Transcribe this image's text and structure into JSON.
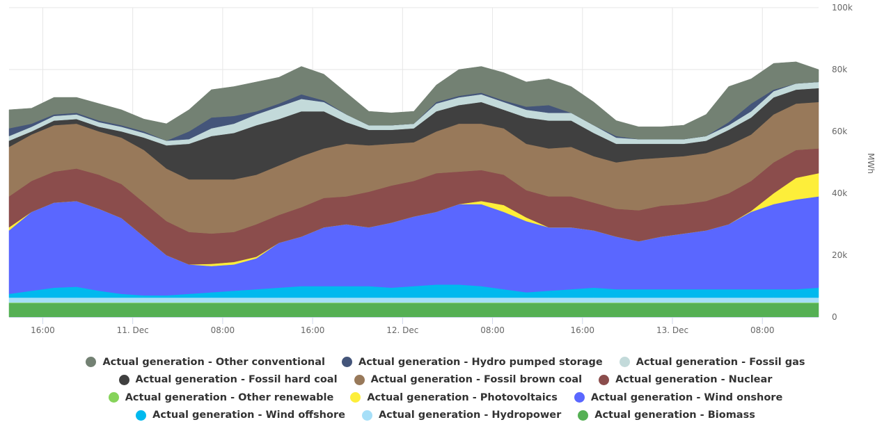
{
  "chart_data": {
    "type": "area",
    "stacked": true,
    "title": "",
    "xlabel": "",
    "ylabel": "MWh",
    "ylim": [
      0,
      100000
    ],
    "yticks": [
      0,
      20000,
      40000,
      60000,
      80000,
      100000
    ],
    "ytick_labels": [
      "0",
      "20k",
      "40k",
      "60k",
      "80k",
      "100k"
    ],
    "xtick_labels": [
      "16:00",
      "11. Dec",
      "08:00",
      "16:00",
      "12. Dec",
      "08:00",
      "16:00",
      "13. Dec",
      "08:00"
    ],
    "xtick_hours": [
      3,
      11,
      19,
      27,
      35,
      43,
      51,
      59,
      67
    ],
    "x_start": "10 Dec 13:00",
    "x_step_hours": 2,
    "x_hours": [
      0,
      2,
      4,
      6,
      8,
      10,
      12,
      14,
      16,
      18,
      20,
      22,
      24,
      26,
      28,
      30,
      32,
      34,
      36,
      38,
      40,
      42,
      44,
      46,
      48,
      50,
      52,
      54,
      56,
      58,
      60,
      62,
      64,
      66,
      68,
      70,
      72
    ],
    "grid": true,
    "legend_position": "bottom",
    "series": [
      {
        "name": "Actual generation - Biomass",
        "color": "#55b054",
        "values": [
          4500,
          4500,
          4500,
          4500,
          4500,
          4500,
          4500,
          4500,
          4500,
          4500,
          4500,
          4500,
          4500,
          4500,
          4500,
          4500,
          4500,
          4500,
          4500,
          4500,
          4500,
          4500,
          4500,
          4500,
          4500,
          4500,
          4500,
          4500,
          4500,
          4500,
          4500,
          4500,
          4500,
          4500,
          4500,
          4500,
          4500
        ]
      },
      {
        "name": "Actual generation - Other renewable",
        "color": "#86d35a",
        "values": [
          200,
          200,
          200,
          200,
          200,
          200,
          200,
          200,
          200,
          200,
          200,
          200,
          200,
          200,
          200,
          200,
          200,
          200,
          200,
          200,
          200,
          200,
          200,
          200,
          200,
          200,
          200,
          200,
          200,
          200,
          200,
          200,
          200,
          200,
          200,
          200,
          200
        ]
      },
      {
        "name": "Actual generation - Hydropower",
        "color": "#a6dff8",
        "values": [
          1600,
          1600,
          1600,
          1600,
          1600,
          1600,
          1600,
          1600,
          1600,
          1600,
          1600,
          1600,
          1600,
          1600,
          1600,
          1600,
          1600,
          1600,
          1600,
          1600,
          1600,
          1600,
          1600,
          1600,
          1600,
          1600,
          1600,
          1600,
          1600,
          1600,
          1600,
          1600,
          1600,
          1600,
          1600,
          1600,
          1600
        ]
      },
      {
        "name": "Actual generation - Wind offshore",
        "color": "#00b9ee",
        "values": [
          1200,
          2200,
          3200,
          3500,
          2200,
          1200,
          700,
          700,
          1200,
          1700,
          2200,
          2700,
          3200,
          3700,
          3700,
          3700,
          3700,
          3200,
          3700,
          4200,
          4200,
          3700,
          2700,
          1700,
          2200,
          2700,
          3200,
          2700,
          2700,
          2700,
          2700,
          2700,
          2700,
          2700,
          2700,
          2700,
          3200
        ]
      },
      {
        "name": "Actual generation - Wind onshore",
        "color": "#5a67ff",
        "values": [
          20500,
          25500,
          27500,
          27700,
          26500,
          24500,
          19000,
          13000,
          9500,
          8500,
          8500,
          10000,
          14500,
          16000,
          19000,
          20000,
          19000,
          21000,
          22500,
          23500,
          26000,
          26500,
          25000,
          23000,
          20500,
          20000,
          18500,
          17000,
          15500,
          17000,
          18000,
          19000,
          21000,
          25000,
          27500,
          29000,
          29500
        ]
      },
      {
        "name": "Actual generation - Photovoltaics",
        "color": "#fdee3a",
        "values": [
          1000,
          0,
          0,
          0,
          0,
          0,
          0,
          0,
          0,
          700,
          800,
          500,
          0,
          0,
          0,
          0,
          0,
          0,
          0,
          0,
          0,
          1000,
          2200,
          1200,
          0,
          0,
          0,
          0,
          0,
          0,
          0,
          0,
          0,
          300,
          3500,
          7000,
          7500
        ]
      },
      {
        "name": "Actual generation - Nuclear",
        "color": "#8b4d4c",
        "values": [
          10000,
          10000,
          10000,
          10500,
          11000,
          11000,
          11000,
          11000,
          10500,
          9800,
          9700,
          10500,
          9000,
          9500,
          9500,
          9000,
          11500,
          12000,
          11500,
          12500,
          10500,
          10000,
          9800,
          8800,
          10000,
          10000,
          9000,
          9000,
          10000,
          10000,
          9500,
          9500,
          10000,
          9700,
          10000,
          9000,
          8000
        ]
      },
      {
        "name": "Actual generation - Fossil brown coal",
        "color": "#98795a",
        "values": [
          16000,
          15000,
          15000,
          14500,
          14000,
          15000,
          17000,
          17000,
          17000,
          17500,
          17000,
          16000,
          16000,
          16500,
          16000,
          17000,
          15000,
          13500,
          12500,
          13500,
          15500,
          15000,
          15000,
          15000,
          15500,
          16000,
          15000,
          15000,
          16500,
          15500,
          15500,
          15500,
          15500,
          15000,
          15500,
          15000,
          15000
        ]
      },
      {
        "name": "Actual generation - Fossil hard coal",
        "color": "#404040",
        "values": [
          2000,
          1000,
          1500,
          1500,
          1500,
          2000,
          4000,
          7500,
          11500,
          14000,
          15000,
          16000,
          15000,
          14500,
          12000,
          7000,
          5000,
          4500,
          4500,
          6500,
          6000,
          7000,
          6000,
          8500,
          9000,
          8500,
          7500,
          6000,
          5000,
          4500,
          4000,
          4000,
          5000,
          5500,
          5500,
          4500,
          4500
        ]
      },
      {
        "name": "Actual generation - Fossil gas",
        "color": "#c3dada",
        "values": [
          1500,
          1500,
          1500,
          1500,
          1500,
          1500,
          1500,
          1500,
          1500,
          2500,
          3000,
          3500,
          4000,
          4000,
          3000,
          2500,
          1500,
          1500,
          1500,
          2500,
          2500,
          2500,
          2500,
          2500,
          2500,
          2500,
          2500,
          2000,
          1500,
          1500,
          1500,
          1500,
          1500,
          2000,
          2000,
          2000,
          2000
        ]
      },
      {
        "name": "Actual generation - Hydro pumped storage",
        "color": "#44557a",
        "values": [
          2500,
          1000,
          500,
          500,
          500,
          500,
          500,
          0,
          2500,
          3500,
          2500,
          1000,
          1000,
          1500,
          500,
          0,
          0,
          0,
          0,
          500,
          500,
          500,
          500,
          1000,
          2500,
          0,
          0,
          500,
          0,
          0,
          0,
          0,
          1000,
          2500,
          500,
          0,
          0
        ]
      },
      {
        "name": "Actual generation - Other conventional",
        "color": "#738173",
        "values": [
          6000,
          5000,
          5500,
          5000,
          5500,
          5000,
          4000,
          5500,
          7000,
          9000,
          9500,
          9500,
          8500,
          9000,
          8500,
          7000,
          4500,
          4000,
          4000,
          5500,
          8500,
          8500,
          9000,
          8000,
          8500,
          8500,
          7500,
          5000,
          4000,
          4000,
          4500,
          7000,
          11500,
          8000,
          8500,
          7000,
          4000
        ]
      }
    ]
  },
  "legend": {
    "rows": [
      [
        {
          "label": "Actual generation - Other conventional",
          "color": "#738173"
        },
        {
          "label": "Actual generation - Hydro pumped storage",
          "color": "#44557a"
        },
        {
          "label": "Actual generation - Fossil gas",
          "color": "#c3dada"
        }
      ],
      [
        {
          "label": "Actual generation - Fossil hard coal",
          "color": "#404040"
        },
        {
          "label": "Actual generation - Fossil brown coal",
          "color": "#98795a"
        },
        {
          "label": "Actual generation - Nuclear",
          "color": "#8b4d4c"
        }
      ],
      [
        {
          "label": "Actual generation - Other renewable",
          "color": "#86d35a"
        },
        {
          "label": "Actual generation - Photovoltaics",
          "color": "#fdee3a"
        },
        {
          "label": "Actual generation - Wind onshore",
          "color": "#5a67ff"
        }
      ],
      [
        {
          "label": "Actual generation - Wind offshore",
          "color": "#00b9ee"
        },
        {
          "label": "Actual generation - Hydropower",
          "color": "#a6dff8"
        },
        {
          "label": "Actual generation - Biomass",
          "color": "#55b054"
        }
      ]
    ]
  }
}
